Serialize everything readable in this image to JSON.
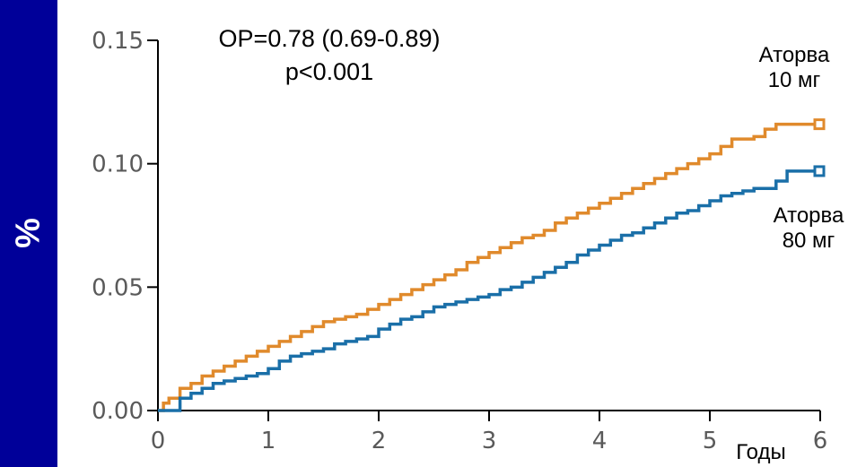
{
  "chart_data": {
    "type": "line",
    "ylabel": "%",
    "xlabel": "Годы",
    "xlim": [
      0,
      6
    ],
    "ylim": [
      0,
      0.15
    ],
    "x_ticks": [
      "0",
      "1",
      "2",
      "3",
      "4",
      "5",
      "6"
    ],
    "y_ticks": [
      "0.00",
      "0.05",
      "0.10",
      "0.15"
    ],
    "annotation_line1": "ОР=0.78 (0.69-0.89)",
    "annotation_line2": "p<0.001",
    "series": [
      {
        "name_line1": "Аторва",
        "name_line2": "10 мг",
        "color": "#e08a2c",
        "x": [
          0,
          0.05,
          0.1,
          0.2,
          0.3,
          0.4,
          0.5,
          0.6,
          0.7,
          0.8,
          0.9,
          1.0,
          1.1,
          1.2,
          1.3,
          1.4,
          1.5,
          1.6,
          1.7,
          1.8,
          1.9,
          2.0,
          2.1,
          2.2,
          2.3,
          2.4,
          2.5,
          2.6,
          2.7,
          2.8,
          2.9,
          3.0,
          3.1,
          3.2,
          3.3,
          3.4,
          3.5,
          3.6,
          3.7,
          3.8,
          3.9,
          4.0,
          4.1,
          4.2,
          4.3,
          4.4,
          4.5,
          4.6,
          4.7,
          4.8,
          4.9,
          5.0,
          5.1,
          5.2,
          5.3,
          5.4,
          5.5,
          5.6,
          5.7,
          5.8,
          5.9,
          6.0
        ],
        "y": [
          0.0,
          0.003,
          0.005,
          0.009,
          0.011,
          0.014,
          0.016,
          0.018,
          0.02,
          0.022,
          0.024,
          0.026,
          0.028,
          0.03,
          0.032,
          0.034,
          0.036,
          0.037,
          0.038,
          0.039,
          0.041,
          0.043,
          0.045,
          0.047,
          0.049,
          0.051,
          0.053,
          0.055,
          0.057,
          0.06,
          0.062,
          0.064,
          0.066,
          0.068,
          0.07,
          0.071,
          0.073,
          0.076,
          0.078,
          0.08,
          0.082,
          0.084,
          0.086,
          0.088,
          0.09,
          0.092,
          0.094,
          0.096,
          0.098,
          0.1,
          0.102,
          0.104,
          0.107,
          0.11,
          0.11,
          0.111,
          0.114,
          0.116,
          0.116,
          0.116,
          0.116,
          0.116
        ]
      },
      {
        "name_line1": "Аторва",
        "name_line2": "80 мг",
        "color": "#1a6fa8",
        "x": [
          0,
          0.1,
          0.2,
          0.3,
          0.4,
          0.5,
          0.6,
          0.7,
          0.8,
          0.9,
          1.0,
          1.1,
          1.2,
          1.3,
          1.4,
          1.5,
          1.6,
          1.7,
          1.8,
          1.9,
          2.0,
          2.1,
          2.2,
          2.3,
          2.4,
          2.5,
          2.6,
          2.7,
          2.8,
          2.9,
          3.0,
          3.1,
          3.2,
          3.3,
          3.4,
          3.5,
          3.6,
          3.7,
          3.8,
          3.9,
          4.0,
          4.1,
          4.2,
          4.3,
          4.4,
          4.5,
          4.6,
          4.7,
          4.8,
          4.9,
          5.0,
          5.1,
          5.2,
          5.3,
          5.4,
          5.5,
          5.6,
          5.7,
          5.8,
          5.9,
          6.0
        ],
        "y": [
          0.0,
          0.0,
          0.005,
          0.007,
          0.009,
          0.011,
          0.012,
          0.013,
          0.014,
          0.015,
          0.017,
          0.02,
          0.022,
          0.023,
          0.024,
          0.025,
          0.027,
          0.028,
          0.029,
          0.03,
          0.033,
          0.035,
          0.037,
          0.038,
          0.04,
          0.042,
          0.043,
          0.044,
          0.045,
          0.046,
          0.047,
          0.049,
          0.05,
          0.052,
          0.054,
          0.056,
          0.058,
          0.06,
          0.063,
          0.065,
          0.067,
          0.069,
          0.071,
          0.072,
          0.074,
          0.076,
          0.078,
          0.08,
          0.081,
          0.083,
          0.085,
          0.087,
          0.088,
          0.089,
          0.09,
          0.09,
          0.093,
          0.097,
          0.097,
          0.097,
          0.097
        ]
      }
    ]
  }
}
